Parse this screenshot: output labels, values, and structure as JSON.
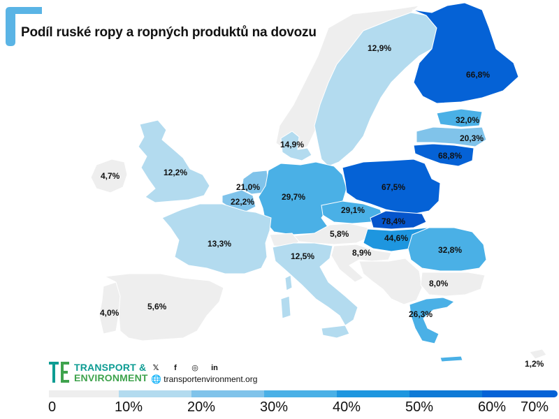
{
  "title": "Podíl ruské ropy a ropných produktů na dovozu",
  "colors": {
    "c0": "#eeeeee",
    "c10": "#b3dbef",
    "c20": "#80c3ea",
    "c30": "#4ab0e6",
    "c40": "#1e96df",
    "c50": "#0f7ad6",
    "c60": "#0562d6",
    "c70": "#0555cc",
    "accent": "#5ab4e5"
  },
  "countries": [
    {
      "name": "Finland",
      "label": "66,8%"
    },
    {
      "name": "Sweden",
      "label": "12,9%"
    },
    {
      "name": "Estonia",
      "label": "32,0%"
    },
    {
      "name": "Latvia",
      "label": "20,3%"
    },
    {
      "name": "Lithuania",
      "label": "68,8%"
    },
    {
      "name": "Denmark",
      "label": "14,9%"
    },
    {
      "name": "Ireland",
      "label": "4,7%"
    },
    {
      "name": "United Kingdom",
      "label": "12,2%"
    },
    {
      "name": "Netherlands",
      "label": "21,0%"
    },
    {
      "name": "Belgium",
      "label": "22,2%"
    },
    {
      "name": "Germany",
      "label": "29,7%"
    },
    {
      "name": "Poland",
      "label": "67,5%"
    },
    {
      "name": "Czechia",
      "label": "29,1%"
    },
    {
      "name": "Slovakia",
      "label": "78,4%"
    },
    {
      "name": "Austria",
      "label": "5,8%"
    },
    {
      "name": "Hungary",
      "label": "44,6%"
    },
    {
      "name": "Romania",
      "label": "32,8%"
    },
    {
      "name": "France",
      "label": "13,3%"
    },
    {
      "name": "Italy",
      "label": "12,5%"
    },
    {
      "name": "Croatia",
      "label": "8,9%"
    },
    {
      "name": "Bulgaria",
      "label": "8,0%"
    },
    {
      "name": "Greece",
      "label": "26,3%"
    },
    {
      "name": "Portugal",
      "label": "4,0%"
    },
    {
      "name": "Spain",
      "label": "5,6%"
    },
    {
      "name": "Cyprus",
      "label": "1,2%"
    }
  ],
  "legend": {
    "ticks": [
      "0",
      "10%",
      "20%",
      "30%",
      "40%",
      "50%",
      "60%",
      "70%"
    ]
  },
  "brand": {
    "line1": "TRANSPORT &",
    "line2": "ENVIRONMENT",
    "website": "transportenvironment.org",
    "social": [
      "twitter-icon",
      "facebook-icon",
      "instagram-icon",
      "linkedin-icon"
    ]
  }
}
